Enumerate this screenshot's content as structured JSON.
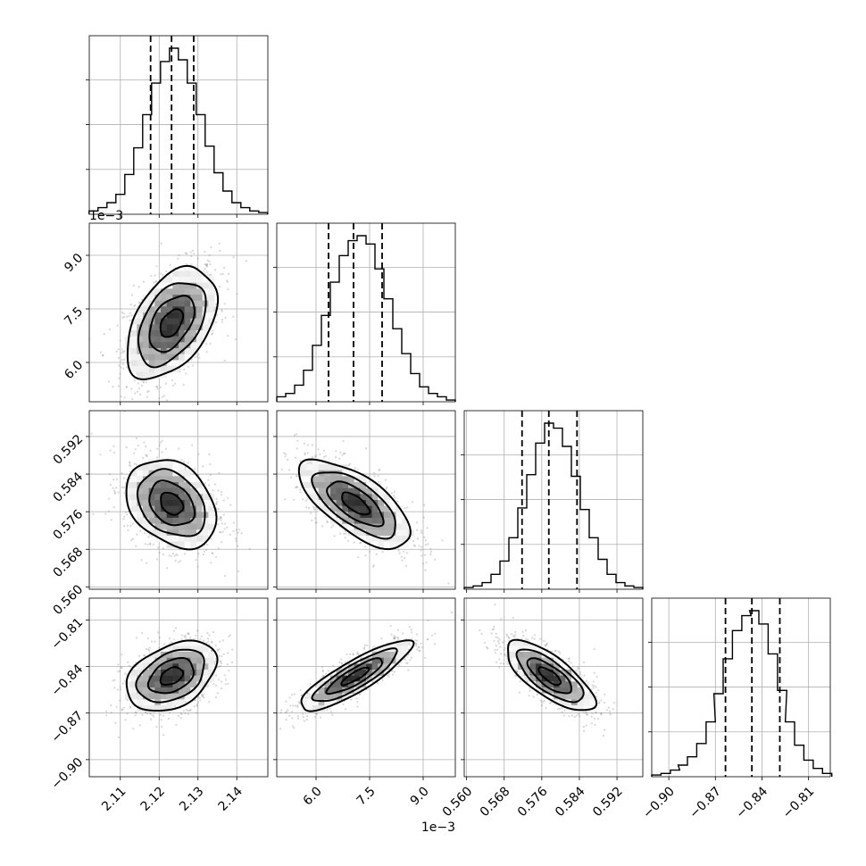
{
  "chart_data": {
    "type": "corner",
    "grid": true,
    "parameters": [
      {
        "range": [
          2.102,
          2.148
        ],
        "ticks": [
          2.11,
          2.12,
          2.13,
          2.14
        ],
        "tick_labels": [
          "2.11",
          "2.12",
          "2.13",
          "2.14"
        ],
        "offset_label": ""
      },
      {
        "range": [
          4.9,
          9.9
        ],
        "ticks": [
          6.0,
          7.5,
          9.0
        ],
        "tick_labels": [
          "6.0",
          "7.5",
          "9.0"
        ],
        "offset_label": "1e−3"
      },
      {
        "range": [
          0.5595,
          0.5975
        ],
        "ticks": [
          0.56,
          0.568,
          0.576,
          0.584,
          0.592
        ],
        "tick_labels": [
          "0.560",
          "0.568",
          "0.576",
          "0.584",
          "0.592"
        ],
        "offset_label": ""
      },
      {
        "range": [
          -0.911,
          -0.796
        ],
        "ticks": [
          -0.9,
          -0.87,
          -0.84,
          -0.81
        ],
        "tick_labels": [
          "−0.90",
          "−0.87",
          "−0.84",
          "−0.81"
        ],
        "offset_label": ""
      }
    ],
    "histograms": [
      {
        "quantiles": [
          2.1178,
          2.1232,
          2.1289
        ],
        "bin_centers": [
          2.1031,
          2.1054,
          2.1077,
          2.11,
          2.1123,
          2.1146,
          2.1169,
          2.1192,
          2.1215,
          2.1238,
          2.1261,
          2.1284,
          2.1307,
          2.133,
          2.1353,
          2.1376,
          2.1399,
          2.1422,
          2.1445,
          2.1468
        ],
        "heights": [
          0.02,
          0.04,
          0.07,
          0.12,
          0.24,
          0.4,
          0.6,
          0.79,
          0.92,
          1.0,
          0.93,
          0.79,
          0.6,
          0.41,
          0.25,
          0.14,
          0.07,
          0.04,
          0.02,
          0.01
        ]
      },
      {
        "quantiles": [
          6.35,
          7.05,
          7.85
        ],
        "bin_centers": [
          5.025,
          5.275,
          5.525,
          5.775,
          6.025,
          6.275,
          6.525,
          6.775,
          7.025,
          7.275,
          7.525,
          7.775,
          8.025,
          8.275,
          8.525,
          8.775,
          9.025,
          9.275,
          9.525,
          9.775
        ],
        "heights": [
          0.03,
          0.05,
          0.1,
          0.19,
          0.34,
          0.52,
          0.72,
          0.88,
          0.97,
          1.0,
          0.95,
          0.8,
          0.62,
          0.44,
          0.29,
          0.17,
          0.09,
          0.05,
          0.03,
          0.01
        ]
      },
      {
        "quantiles": [
          0.5718,
          0.5775,
          0.5835
        ],
        "bin_centers": [
          0.56045,
          0.56235,
          0.56425,
          0.56615,
          0.56805,
          0.56995,
          0.57185,
          0.57375,
          0.57565,
          0.57755,
          0.57945,
          0.58135,
          0.58325,
          0.58515,
          0.58705,
          0.58895,
          0.59085,
          0.59275,
          0.59465,
          0.59655
        ],
        "heights": [
          0.01,
          0.02,
          0.04,
          0.09,
          0.17,
          0.31,
          0.49,
          0.69,
          0.88,
          1.0,
          0.97,
          0.86,
          0.68,
          0.48,
          0.31,
          0.18,
          0.09,
          0.04,
          0.02,
          0.01
        ]
      },
      {
        "quantiles": [
          -0.8635,
          -0.8465,
          -0.8285
        ],
        "bin_centers": [
          -0.908,
          -0.902,
          -0.896,
          -0.891,
          -0.885,
          -0.879,
          -0.873,
          -0.868,
          -0.862,
          -0.856,
          -0.85,
          -0.845,
          -0.839,
          -0.833,
          -0.827,
          -0.822,
          -0.816,
          -0.81,
          -0.804,
          -0.798
        ],
        "heights": [
          0.01,
          0.02,
          0.04,
          0.07,
          0.12,
          0.2,
          0.33,
          0.5,
          0.71,
          0.88,
          0.97,
          1.0,
          0.92,
          0.74,
          0.52,
          0.33,
          0.19,
          0.1,
          0.05,
          0.02
        ]
      }
    ],
    "pairs": [
      {
        "row": 1,
        "col": 0,
        "center": [
          2.1232,
          7.1
        ],
        "sd": [
          0.0058,
          0.78
        ],
        "corr": 0.45
      },
      {
        "row": 2,
        "col": 0,
        "center": [
          2.1232,
          0.5777
        ],
        "sd": [
          0.0058,
          0.0047
        ],
        "corr": -0.3
      },
      {
        "row": 2,
        "col": 1,
        "center": [
          7.1,
          0.5777
        ],
        "sd": [
          0.78,
          0.0047
        ],
        "corr": -0.68
      },
      {
        "row": 3,
        "col": 0,
        "center": [
          2.1232,
          -0.8462
        ],
        "sd": [
          0.0058,
          0.0113
        ],
        "corr": 0.38
      },
      {
        "row": 3,
        "col": 1,
        "center": [
          7.1,
          -0.8462
        ],
        "sd": [
          0.78,
          0.0113
        ],
        "corr": 0.86
      },
      {
        "row": 3,
        "col": 2,
        "center": [
          0.5777,
          -0.8462
        ],
        "sd": [
          0.0047,
          0.0113
        ],
        "corr": -0.74
      }
    ]
  }
}
